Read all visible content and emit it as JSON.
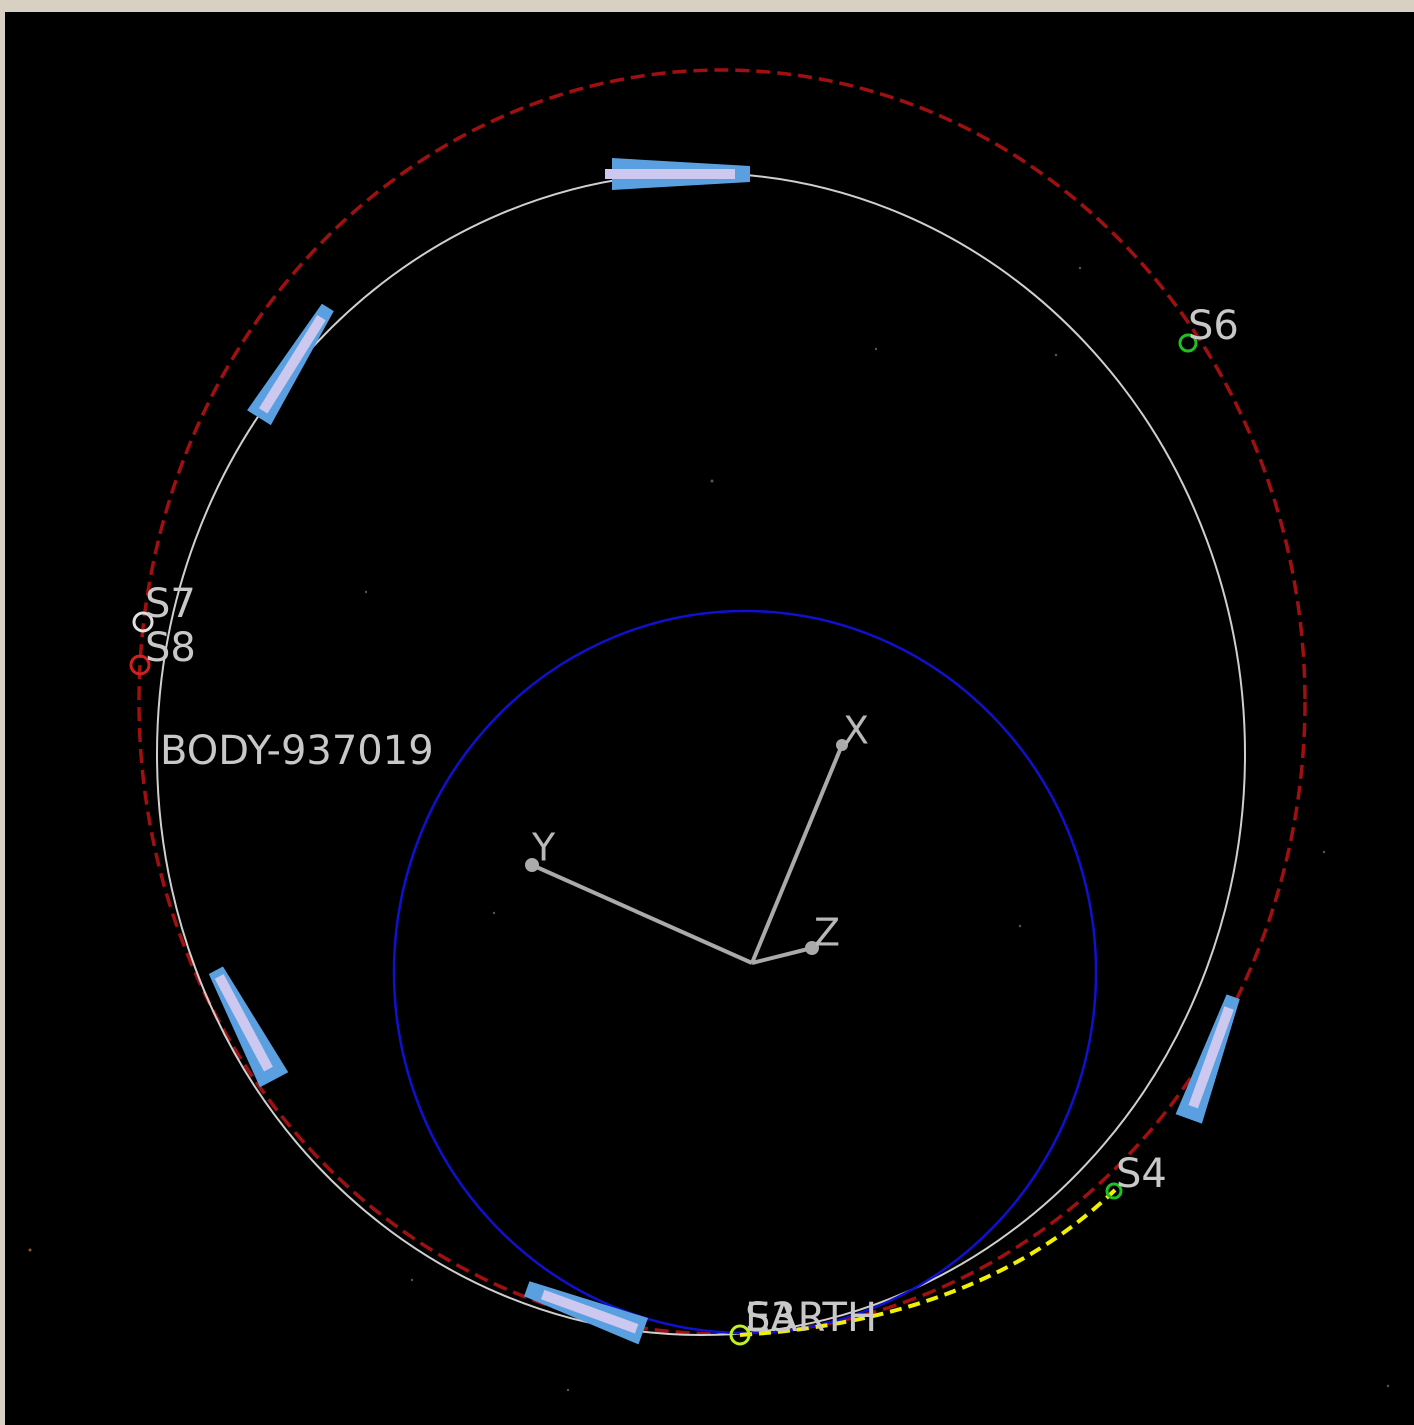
{
  "view": {
    "markers": [
      "S6",
      "S7",
      "S8",
      "S4",
      "S3"
    ],
    "body_label": "BODY-937019",
    "central_body": "EARTH",
    "axes": [
      "X",
      "Y",
      "Z"
    ]
  }
}
